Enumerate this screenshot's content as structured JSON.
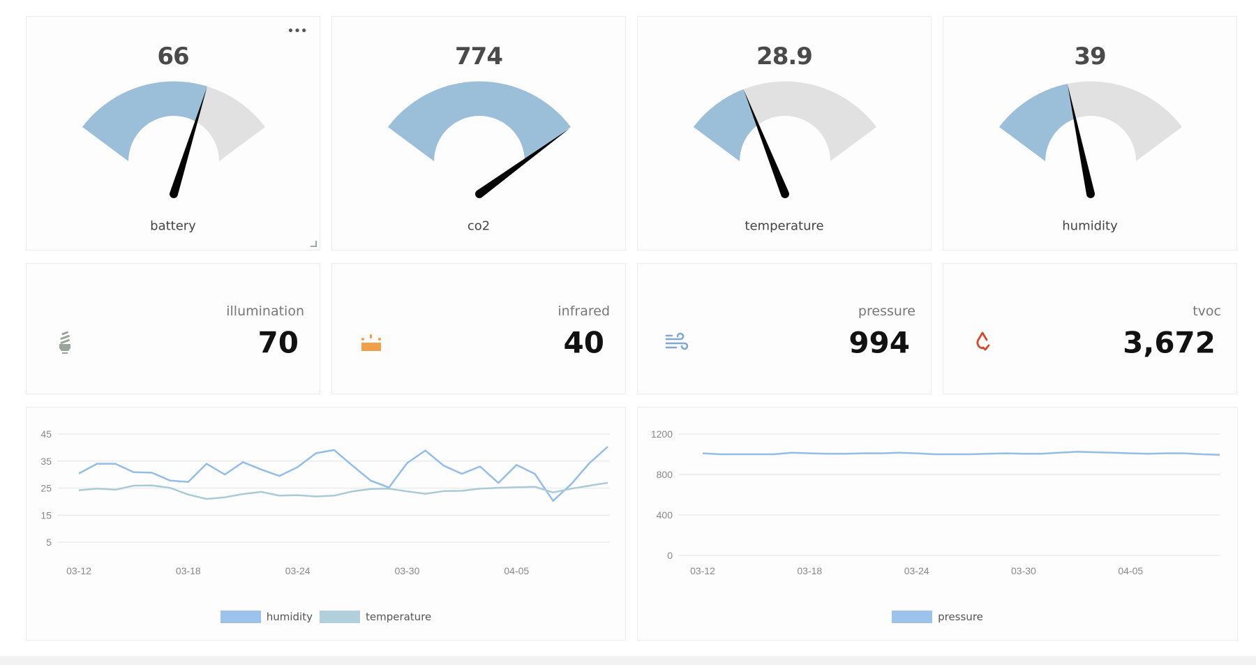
{
  "colors": {
    "gauge_fill": "#9bbfd8",
    "gauge_track": "#e1e1e1",
    "needle": "#050505",
    "humidity_line": "#93bde9",
    "temperature_line": "#a9cbd8",
    "pressure_line": "#93bde9"
  },
  "gauges": [
    {
      "label": "battery",
      "value": "66",
      "fill": 0.66
    },
    {
      "label": "co2",
      "value": "774",
      "fill": 1.0
    },
    {
      "label": "temperature",
      "value": "28.9",
      "fill": 0.3
    },
    {
      "label": "humidity",
      "value": "39",
      "fill": 0.39
    }
  ],
  "gauge_menu": "•••",
  "stats": [
    {
      "label": "illumination",
      "value": "70",
      "icon": "lightbulb-icon",
      "color": "#9aa59a"
    },
    {
      "label": "infrared",
      "value": "40",
      "icon": "infrared-icon",
      "color": "#f0a04b"
    },
    {
      "label": "pressure",
      "value": "994",
      "icon": "wind-icon",
      "color": "#7fa8d6"
    },
    {
      "label": "tvoc",
      "value": "3,672",
      "icon": "drop-check-icon",
      "color": "#d9472b"
    }
  ],
  "chart_data": [
    {
      "type": "line",
      "x": [
        "03-12",
        "03-13",
        "03-14",
        "03-15",
        "03-16",
        "03-17",
        "03-18",
        "03-19",
        "03-20",
        "03-21",
        "03-22",
        "03-23",
        "03-24",
        "03-25",
        "03-26",
        "03-27",
        "03-28",
        "03-29",
        "03-30",
        "03-31",
        "04-01",
        "04-02",
        "04-03",
        "04-04",
        "04-05",
        "04-06",
        "04-07",
        "04-08",
        "04-09",
        "04-10"
      ],
      "xticks": [
        "03-12",
        "03-18",
        "03-24",
        "03-30",
        "04-05"
      ],
      "yticks": [
        5,
        15,
        25,
        35,
        45
      ],
      "ylim": [
        5,
        45
      ],
      "grid": true,
      "legend": "bottom",
      "series": [
        {
          "name": "humidity",
          "values": [
            30.4,
            34,
            34,
            30.9,
            30.7,
            27.8,
            27.3,
            34,
            30,
            34.6,
            31.9,
            29.5,
            32.8,
            37.9,
            39.1,
            33.3,
            27.8,
            25.2,
            34.3,
            38.9,
            33.3,
            30.3,
            33,
            26.9,
            33.6,
            30.3,
            20.3,
            26.5,
            34.3,
            40.3
          ]
        },
        {
          "name": "temperature",
          "values": [
            24.2,
            24.8,
            24.4,
            25.9,
            26,
            25.1,
            22.6,
            21,
            21.6,
            22.8,
            23.6,
            22.2,
            22.4,
            21.9,
            22.2,
            23.8,
            24.7,
            24.8,
            23.8,
            22.9,
            23.9,
            24,
            24.8,
            25.1,
            25.3,
            25.5,
            23.4,
            24.8,
            25.9,
            27
          ]
        }
      ]
    },
    {
      "type": "line",
      "x": [
        "03-12",
        "03-13",
        "03-14",
        "03-15",
        "03-16",
        "03-17",
        "03-18",
        "03-19",
        "03-20",
        "03-21",
        "03-22",
        "03-23",
        "03-24",
        "03-25",
        "03-26",
        "03-27",
        "03-28",
        "03-29",
        "03-30",
        "03-31",
        "04-01",
        "04-02",
        "04-03",
        "04-04",
        "04-05",
        "04-06",
        "04-07",
        "04-08",
        "04-09",
        "04-10"
      ],
      "xticks": [
        "03-12",
        "03-18",
        "03-24",
        "03-30",
        "04-05"
      ],
      "yticks": [
        0,
        400,
        800,
        1200
      ],
      "ylim": [
        0,
        1200
      ],
      "grid": true,
      "legend": "bottom",
      "series": [
        {
          "name": "pressure",
          "values": [
            1010,
            1000,
            1000,
            1000,
            1000,
            1015,
            1010,
            1005,
            1005,
            1010,
            1010,
            1015,
            1010,
            1000,
            1000,
            1000,
            1005,
            1010,
            1005,
            1005,
            1015,
            1025,
            1020,
            1015,
            1010,
            1005,
            1010,
            1010,
            1000,
            995
          ]
        }
      ]
    }
  ]
}
